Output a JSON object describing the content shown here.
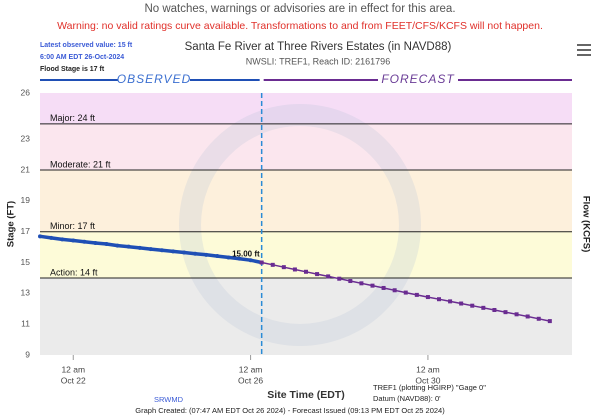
{
  "chart_data": {
    "type": "line",
    "notice": "No watches, warnings or advisories are in effect for this area.",
    "warning": "Warning: no valid ratings curve available. Transformations to and from FEET/CFS/KCFS will not happen.",
    "info": [
      "Latest observed value: 15 ft",
      "6:00 AM EDT 26-Oct-2024",
      "Flood Stage is 17 ft"
    ],
    "title": "Santa Fe River at Three Rivers Estates (in NAVD88)",
    "subtitle": "NWSLI: TREF1, Reach ID: 2161796",
    "observed_label": "OBSERVED",
    "forecast_label": "FORECAST",
    "y_label": "Stage (FT)",
    "y2_label": "Flow (KCFS)",
    "x_label": "Site Time (EDT)",
    "latest_label": "15.00 ft",
    "footer": {
      "agency": "SRWMD",
      "gage": "TREF1 (plotting HGIRP) \"Gage 0\"",
      "datum": "Datum (NAVD88): 0'",
      "created": "Graph Created: (07:47 AM EDT Oct 26 2024) - Forecast Issued (09:13 PM EDT Oct 25 2024)"
    },
    "xlim": [
      "2024-10-21T06:00",
      "2024-11-02T06:00"
    ],
    "xticks": [
      {
        "value": "2024-10-22T00:00",
        "label": [
          "12 am",
          "Oct 22"
        ]
      },
      {
        "value": "2024-10-26T00:00",
        "label": [
          "12 am",
          "Oct 26"
        ]
      },
      {
        "value": "2024-10-30T00:00",
        "label": [
          "12 am",
          "Oct 30"
        ]
      }
    ],
    "ylim": [
      9,
      26
    ],
    "yticks": [
      9,
      11,
      13,
      15,
      17,
      19,
      21,
      23,
      26
    ],
    "base_color": "#ebebeb",
    "thresholds": [
      {
        "name": "Major",
        "value": 24,
        "label": "Major: 24 ft",
        "color": "#f6ddf6"
      },
      {
        "name": "Moderate",
        "value": 21,
        "label": "Moderate: 21 ft",
        "color": "#fbe6ee"
      },
      {
        "name": "Minor",
        "value": 17,
        "label": "Minor: 17 ft",
        "color": "#fdf0dc"
      },
      {
        "name": "Action",
        "value": 14,
        "label": "Action: 14 ft",
        "color": "#fdfbd8"
      }
    ],
    "series": [
      {
        "name": "Observed",
        "color": "#1f4fb5",
        "x": [
          "2024-10-21T06:00",
          "2024-10-21T12:00",
          "2024-10-21T18:00",
          "2024-10-22T00:00",
          "2024-10-22T06:00",
          "2024-10-22T12:00",
          "2024-10-22T18:00",
          "2024-10-23T00:00",
          "2024-10-23T06:00",
          "2024-10-23T12:00",
          "2024-10-23T18:00",
          "2024-10-24T00:00",
          "2024-10-24T06:00",
          "2024-10-24T12:00",
          "2024-10-24T18:00",
          "2024-10-25T00:00",
          "2024-10-25T06:00",
          "2024-10-25T12:00",
          "2024-10-25T18:00",
          "2024-10-26T00:00",
          "2024-10-26T06:00"
        ],
        "values": [
          16.7,
          16.6,
          16.5,
          16.43,
          16.35,
          16.27,
          16.2,
          16.1,
          16.03,
          15.95,
          15.87,
          15.8,
          15.72,
          15.65,
          15.57,
          15.5,
          15.42,
          15.33,
          15.25,
          15.15,
          15.0
        ]
      },
      {
        "name": "Forecast",
        "color": "#6a2c91",
        "x": [
          "2024-10-26T06:00",
          "2024-10-26T12:00",
          "2024-10-26T18:00",
          "2024-10-27T00:00",
          "2024-10-27T06:00",
          "2024-10-27T12:00",
          "2024-10-27T18:00",
          "2024-10-28T00:00",
          "2024-10-28T06:00",
          "2024-10-28T12:00",
          "2024-10-28T18:00",
          "2024-10-29T00:00",
          "2024-10-29T06:00",
          "2024-10-29T12:00",
          "2024-10-29T18:00",
          "2024-10-30T00:00",
          "2024-10-30T06:00",
          "2024-10-30T12:00",
          "2024-10-30T18:00",
          "2024-10-31T00:00",
          "2024-10-31T06:00",
          "2024-10-31T12:00",
          "2024-10-31T18:00",
          "2024-11-01T00:00",
          "2024-11-01T06:00",
          "2024-11-01T12:00",
          "2024-11-01T18:00"
        ],
        "values": [
          15.0,
          14.85,
          14.7,
          14.55,
          14.4,
          14.25,
          14.1,
          13.95,
          13.8,
          13.65,
          13.5,
          13.35,
          13.2,
          13.05,
          12.9,
          12.76,
          12.62,
          12.48,
          12.34,
          12.2,
          12.06,
          11.92,
          11.78,
          11.64,
          11.5,
          11.35,
          11.2
        ]
      }
    ]
  }
}
